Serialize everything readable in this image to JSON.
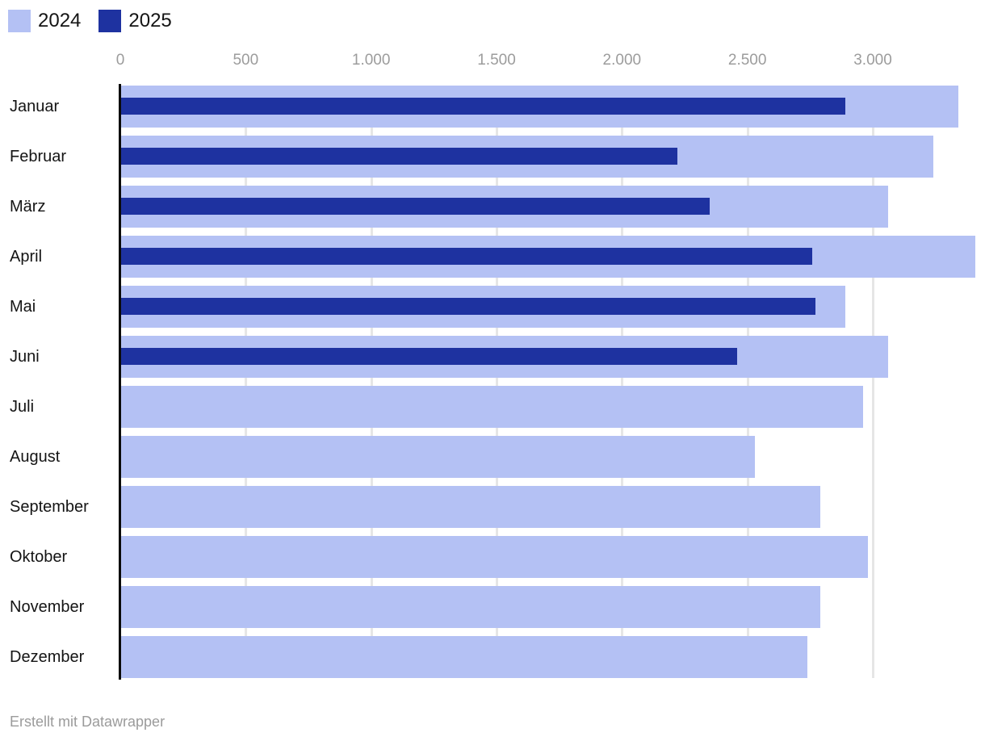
{
  "footer": {
    "attribution": "Erstellt mit Datawrapper"
  },
  "colors": {
    "series_2024": "#b4c1f4",
    "series_2025": "#1e32a0",
    "gridline": "#e6e6e6",
    "baseline": "#0a0a0a",
    "axis_label": "#9c9c9c",
    "category_label": "#141414",
    "footer_text": "#9b9b9b"
  },
  "chart_data": {
    "type": "bar",
    "orientation": "horizontal",
    "title": "",
    "xlabel": "",
    "ylabel": "",
    "grid": true,
    "legend_position": "top-left",
    "categories": [
      "Januar",
      "Februar",
      "März",
      "April",
      "Mai",
      "Juni",
      "Juli",
      "August",
      "September",
      "Oktober",
      "November",
      "Dezember"
    ],
    "series": [
      {
        "name": "2024",
        "color": "#b4c1f4",
        "values": [
          3340,
          3240,
          3060,
          3410,
          2890,
          3060,
          2960,
          2530,
          2790,
          2980,
          2790,
          2740
        ]
      },
      {
        "name": "2025",
        "color": "#1e32a0",
        "values": [
          2890,
          2220,
          2350,
          2760,
          2770,
          2460,
          null,
          null,
          null,
          null,
          null,
          null
        ]
      }
    ],
    "x_axis": {
      "min": 0,
      "max": 3410,
      "ticks": [
        0,
        500,
        1000,
        1500,
        2000,
        2500,
        3000
      ],
      "tick_labels": [
        "0",
        "500",
        "1.000",
        "1.500",
        "2.000",
        "2.500",
        "3.000"
      ]
    }
  }
}
